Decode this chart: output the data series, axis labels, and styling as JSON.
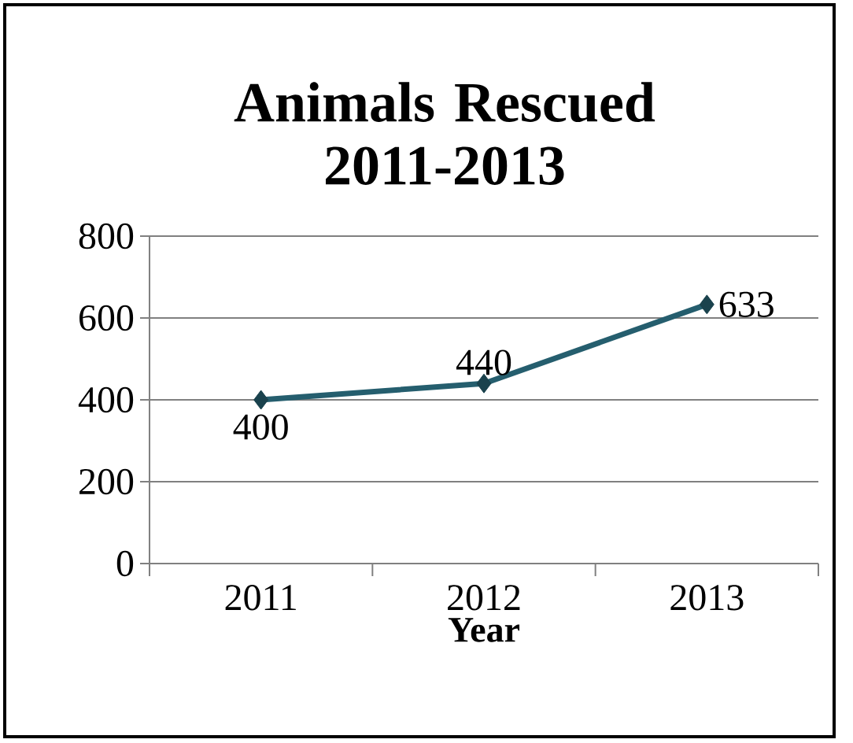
{
  "chart_data": {
    "type": "line",
    "title": "Animals Rescued 2011-2013",
    "xlabel": "Year",
    "categories": [
      "2011",
      "2012",
      "2013"
    ],
    "series": [
      {
        "color": "#255e6e",
        "values": [
          400,
          440,
          633
        ]
      }
    ],
    "ylim": [
      0,
      800
    ],
    "yticks": [
      0,
      200,
      400,
      600,
      800
    ],
    "grid": "y",
    "marker": "diamond",
    "line_style": "solid",
    "data_labels": true
  }
}
